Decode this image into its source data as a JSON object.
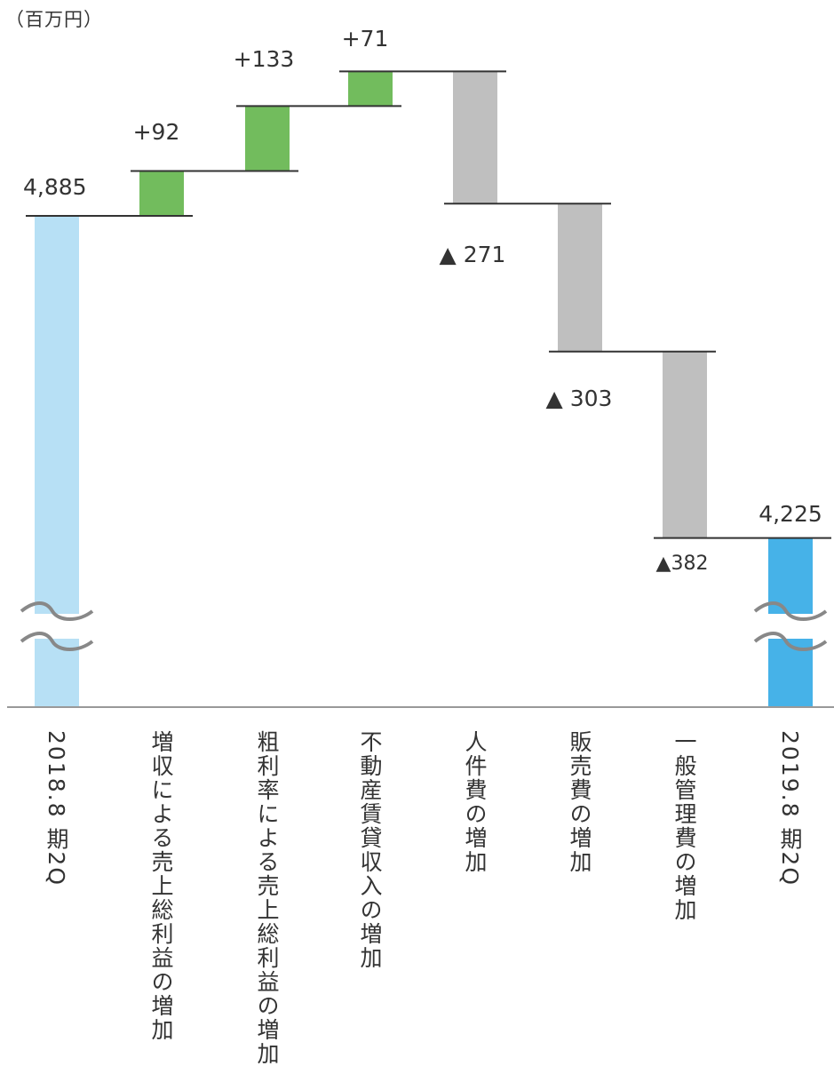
{
  "unit_label": "（百万円）",
  "colors": {
    "start": "#b7e0f5",
    "end": "#46b2e8",
    "increase": "#72bc5d",
    "decrease": "#bfbfbf",
    "connector": "#333333",
    "axis": "#999999",
    "break": "#888888"
  },
  "chart_data": {
    "type": "bar",
    "subtype": "waterfall",
    "title": "",
    "xlabel": "",
    "ylabel": "（百万円）",
    "axis_break": true,
    "grid": false,
    "categories": [
      "2018.8 期2Q",
      "増収による売上総利益の増加",
      "粗利率による売上総利益の増加",
      "不動産賃貸収入の増加",
      "人件費の増加",
      "販売費の増加",
      "一般管理費の増加",
      "2019.8 期2Q"
    ],
    "values": [
      4885,
      92,
      133,
      71,
      -271,
      -303,
      -382,
      4225
    ],
    "kinds": [
      "total",
      "increase",
      "increase",
      "increase",
      "decrease",
      "decrease",
      "decrease",
      "total"
    ],
    "value_labels": [
      "4,885",
      "+92",
      "+133",
      "+71",
      "▲ 271",
      "▲ 303",
      "▲382",
      "4,225"
    ]
  }
}
